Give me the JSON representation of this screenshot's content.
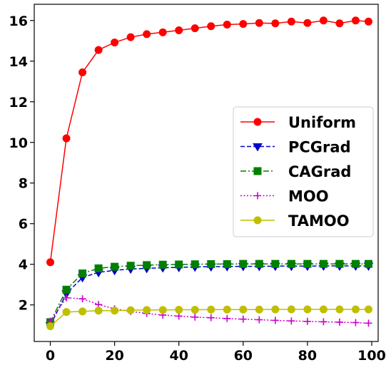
{
  "chart_data": {
    "type": "line",
    "title": "",
    "xlabel": "",
    "ylabel": "",
    "xlim": [
      -5,
      102
    ],
    "ylim": [
      0.2,
      16.8
    ],
    "x_ticks": [
      0,
      20,
      40,
      60,
      80,
      100
    ],
    "y_ticks": [
      2,
      4,
      6,
      8,
      10,
      12,
      14,
      16
    ],
    "x_tick_labels": [
      "0",
      "20",
      "40",
      "60",
      "80",
      "100"
    ],
    "y_tick_labels": [
      "2",
      "4",
      "6",
      "8",
      "10",
      "12",
      "14",
      "16"
    ],
    "grid": false,
    "legend_position": "center-right",
    "series": [
      {
        "name": "Uniform",
        "color": "#ff0000",
        "linestyle": "solid",
        "marker": "circle",
        "x": [
          0,
          5,
          10,
          15,
          20,
          25,
          30,
          35,
          40,
          45,
          50,
          55,
          60,
          65,
          70,
          75,
          80,
          85,
          90,
          95,
          99
        ],
        "y": [
          4.1,
          10.2,
          13.45,
          14.55,
          14.92,
          15.18,
          15.33,
          15.42,
          15.52,
          15.62,
          15.72,
          15.8,
          15.83,
          15.88,
          15.86,
          15.95,
          15.88,
          16.0,
          15.86,
          16.0,
          15.95
        ]
      },
      {
        "name": "PCGrad",
        "color": "#0000cc",
        "linestyle": "dashed",
        "marker": "triangle-down",
        "x": [
          0,
          5,
          10,
          15,
          20,
          25,
          30,
          35,
          40,
          45,
          50,
          55,
          60,
          65,
          70,
          75,
          80,
          85,
          90,
          95,
          99
        ],
        "y": [
          1.0,
          2.55,
          3.35,
          3.6,
          3.7,
          3.77,
          3.8,
          3.83,
          3.85,
          3.87,
          3.88,
          3.89,
          3.9,
          3.9,
          3.91,
          3.91,
          3.91,
          3.92,
          3.92,
          3.92,
          3.92
        ]
      },
      {
        "name": "CAGrad",
        "color": "#008000",
        "linestyle": "dashdot",
        "marker": "square",
        "x": [
          0,
          5,
          10,
          15,
          20,
          25,
          30,
          35,
          40,
          45,
          50,
          55,
          60,
          65,
          70,
          75,
          80,
          85,
          90,
          95,
          99
        ],
        "y": [
          1.15,
          2.75,
          3.55,
          3.8,
          3.88,
          3.93,
          3.96,
          3.98,
          3.99,
          4.0,
          4.01,
          4.01,
          4.02,
          4.02,
          4.02,
          4.02,
          4.02,
          4.02,
          4.02,
          4.02,
          4.02
        ]
      },
      {
        "name": "MOO",
        "color": "#cc00cc",
        "linestyle": "dotted",
        "marker": "plus",
        "x": [
          0,
          5,
          10,
          15,
          20,
          25,
          30,
          35,
          40,
          45,
          50,
          55,
          60,
          65,
          70,
          75,
          80,
          85,
          90,
          95,
          99
        ],
        "y": [
          1.2,
          2.35,
          2.3,
          2.02,
          1.8,
          1.68,
          1.58,
          1.5,
          1.45,
          1.4,
          1.37,
          1.33,
          1.3,
          1.27,
          1.24,
          1.21,
          1.19,
          1.17,
          1.15,
          1.13,
          1.1
        ]
      },
      {
        "name": "TAMOO",
        "color": "#bfbf00",
        "linestyle": "solid",
        "marker": "circle",
        "x": [
          0,
          5,
          10,
          15,
          20,
          25,
          30,
          35,
          40,
          45,
          50,
          55,
          60,
          65,
          70,
          75,
          80,
          85,
          90,
          95,
          99
        ],
        "y": [
          0.95,
          1.65,
          1.68,
          1.72,
          1.72,
          1.74,
          1.75,
          1.75,
          1.76,
          1.76,
          1.77,
          1.77,
          1.77,
          1.77,
          1.78,
          1.78,
          1.78,
          1.78,
          1.78,
          1.78,
          1.78
        ]
      }
    ]
  }
}
